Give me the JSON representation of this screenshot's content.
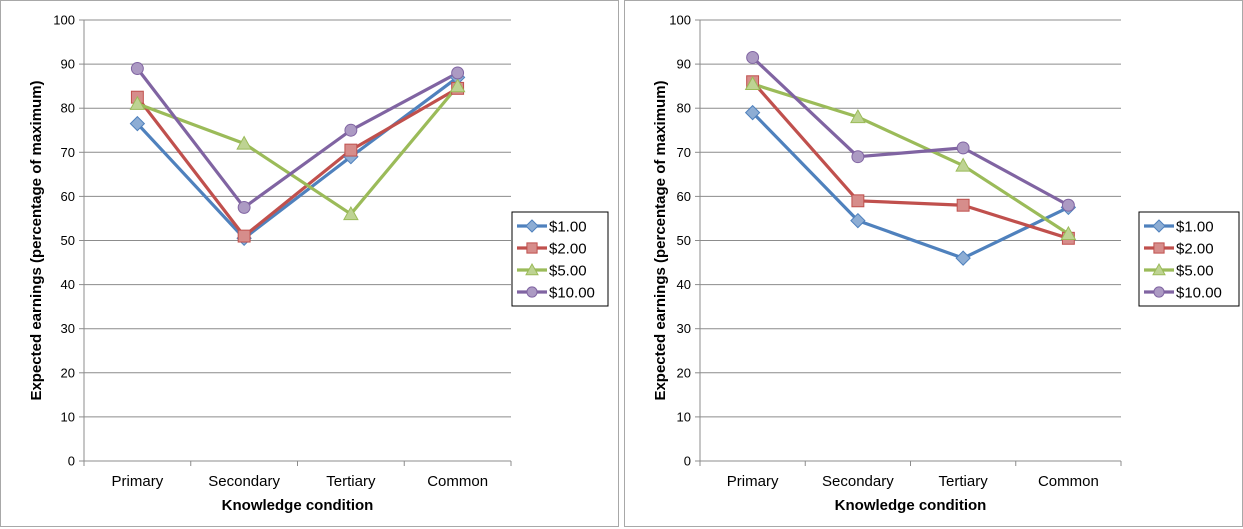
{
  "chart_data": [
    {
      "type": "line",
      "categories": [
        "Primary",
        "Secondary",
        "Tertiary",
        "Common"
      ],
      "xlabel": "Knowledge condition",
      "ylabel": "Expected earnings (percentage of maximum)",
      "ylim": [
        0,
        100
      ],
      "yticks": [
        0,
        10,
        20,
        30,
        40,
        50,
        60,
        70,
        80,
        90,
        100
      ],
      "grid": true,
      "legend_position": "right",
      "series": [
        {
          "name": "$1.00",
          "color": "#4f81bd",
          "marker": "diamond",
          "values": [
            76.5,
            50.5,
            69,
            87
          ]
        },
        {
          "name": "$2.00",
          "color": "#c0504d",
          "marker": "square",
          "values": [
            82.5,
            51,
            70.5,
            84.5
          ]
        },
        {
          "name": "$5.00",
          "color": "#9bbb59",
          "marker": "triangle",
          "values": [
            81,
            72,
            56,
            85
          ]
        },
        {
          "name": "$10.00",
          "color": "#8064a2",
          "marker": "circle",
          "values": [
            89,
            57.5,
            75,
            88
          ]
        }
      ]
    },
    {
      "type": "line",
      "categories": [
        "Primary",
        "Secondary",
        "Tertiary",
        "Common"
      ],
      "xlabel": "Knowledge condition",
      "ylabel": "Expected earnings (percentage of maximum)",
      "ylim": [
        0,
        100
      ],
      "yticks": [
        0,
        10,
        20,
        30,
        40,
        50,
        60,
        70,
        80,
        90,
        100
      ],
      "grid": true,
      "legend_position": "right",
      "series": [
        {
          "name": "$1.00",
          "color": "#4f81bd",
          "marker": "diamond",
          "values": [
            79,
            54.5,
            46,
            57.5
          ]
        },
        {
          "name": "$2.00",
          "color": "#c0504d",
          "marker": "square",
          "values": [
            86,
            59,
            58,
            50.5
          ]
        },
        {
          "name": "$5.00",
          "color": "#9bbb59",
          "marker": "triangle",
          "values": [
            85.5,
            78,
            67,
            51.5
          ]
        },
        {
          "name": "$10.00",
          "color": "#8064a2",
          "marker": "circle",
          "values": [
            91.5,
            69,
            71,
            58
          ]
        }
      ]
    }
  ]
}
